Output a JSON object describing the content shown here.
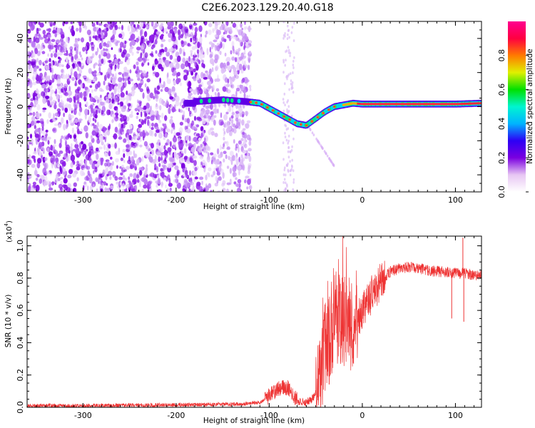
{
  "title": "C2E6.2023.129.20.40.G18",
  "chart_data": [
    {
      "type": "heatmap",
      "name": "spectrogram",
      "xlabel": "Height of straight line (km)",
      "ylabel": "Frequency (Hz)",
      "xlim": [
        -360,
        128
      ],
      "ylim": [
        -50,
        50
      ],
      "x_ticks": [
        -300,
        -200,
        -100,
        0,
        100
      ],
      "y_ticks": [
        -40,
        -20,
        0,
        20,
        40
      ],
      "colorbar": {
        "label": "Normalized spectral amplitude",
        "range": [
          0,
          1
        ],
        "ticks": [
          "0.0",
          "0.2",
          "0.4",
          "0.6",
          "0.8"
        ],
        "colors": [
          "#ffffff",
          "#e7c6f3",
          "#7a00e0",
          "#2d00f5",
          "#00b4ff",
          "#00f5d0",
          "#00e000",
          "#e0f000",
          "#ff7a00",
          "#ff0040",
          "#ff0090"
        ]
      },
      "noise_region_x": [
        -360,
        -120
      ],
      "signal_trace": [
        {
          "x": -180,
          "freq": 3
        },
        {
          "x": -150,
          "freq": 4
        },
        {
          "x": -125,
          "freq": 3
        },
        {
          "x": -110,
          "freq": 2
        },
        {
          "x": -100,
          "freq": -1
        },
        {
          "x": -90,
          "freq": -4
        },
        {
          "x": -80,
          "freq": -7
        },
        {
          "x": -70,
          "freq": -10
        },
        {
          "x": -60,
          "freq": -11
        },
        {
          "x": -50,
          "freq": -7
        },
        {
          "x": -40,
          "freq": -3
        },
        {
          "x": -30,
          "freq": 0
        },
        {
          "x": -20,
          "freq": 1
        },
        {
          "x": -10,
          "freq": 2
        },
        {
          "x": 0,
          "freq": 1.5
        },
        {
          "x": 50,
          "freq": 1.5
        },
        {
          "x": 100,
          "freq": 1.5
        },
        {
          "x": 128,
          "freq": 2
        }
      ]
    },
    {
      "type": "line",
      "name": "snr",
      "xlabel": "Height of straight line (km)",
      "ylabel": "SNR (10 * v/v)",
      "y_multiplier": "(x10",
      "y_multiplier_exp": "4",
      "xlim": [
        -360,
        128
      ],
      "ylim": [
        0,
        1.06
      ],
      "x_ticks": [
        -300,
        -200,
        -100,
        0,
        100
      ],
      "y_ticks": [
        "0.0",
        "0.2",
        "0.4",
        "0.6",
        "0.8",
        "1.0"
      ],
      "series": [
        {
          "color": "#ee3333",
          "points": [
            [
              -360,
              0.01
            ],
            [
              -300,
              0.01
            ],
            [
              -200,
              0.015
            ],
            [
              -130,
              0.02
            ],
            [
              -110,
              0.03
            ],
            [
              -100,
              0.07
            ],
            [
              -92,
              0.11
            ],
            [
              -85,
              0.13
            ],
            [
              -80,
              0.12
            ],
            [
              -75,
              0.08
            ],
            [
              -68,
              0.03
            ],
            [
              -60,
              0.03
            ],
            [
              -52,
              0.06
            ],
            [
              -45,
              0.2
            ],
            [
              -40,
              0.35
            ],
            [
              -35,
              0.45
            ],
            [
              -30,
              0.52
            ],
            [
              -25,
              0.55
            ],
            [
              -20,
              0.52
            ],
            [
              -15,
              0.5
            ],
            [
              -10,
              0.52
            ],
            [
              -5,
              0.55
            ],
            [
              0,
              0.6
            ],
            [
              5,
              0.65
            ],
            [
              10,
              0.7
            ],
            [
              20,
              0.78
            ],
            [
              30,
              0.84
            ],
            [
              40,
              0.86
            ],
            [
              50,
              0.87
            ],
            [
              60,
              0.86
            ],
            [
              70,
              0.85
            ],
            [
              80,
              0.84
            ],
            [
              90,
              0.84
            ],
            [
              100,
              0.83
            ],
            [
              110,
              0.83
            ],
            [
              120,
              0.82
            ],
            [
              128,
              0.82
            ]
          ],
          "spikes": [
            {
              "x": 96,
              "y": 0.55
            },
            {
              "x": 108,
              "y": 1.05
            },
            {
              "x": 109,
              "y": 0.53
            }
          ]
        }
      ]
    }
  ]
}
